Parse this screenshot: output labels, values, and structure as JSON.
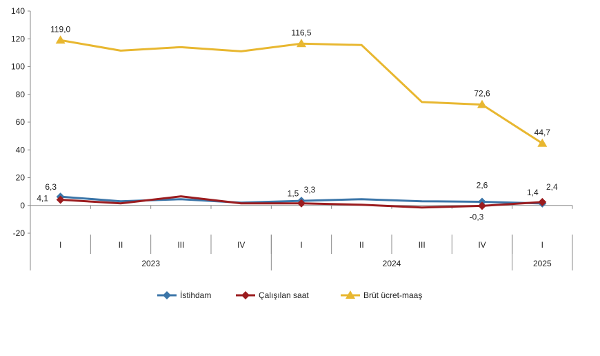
{
  "chart_data": {
    "type": "line",
    "ylim": [
      -20,
      140
    ],
    "yticks": [
      -20,
      0,
      20,
      40,
      60,
      80,
      100,
      120,
      140
    ],
    "categories": [
      "I",
      "II",
      "III",
      "IV",
      "I",
      "II",
      "III",
      "IV",
      "I"
    ],
    "years": [
      {
        "label": "2023",
        "span": 4
      },
      {
        "label": "2024",
        "span": 4
      },
      {
        "label": "2025",
        "span": 1
      }
    ],
    "grid": false,
    "legend": "bottom",
    "series": [
      {
        "name": "İstihdam",
        "color": "#3b75a8",
        "marker": "diamond",
        "values": [
          6.3,
          3.0,
          4.5,
          2.0,
          3.3,
          4.5,
          3.0,
          2.6,
          1.4
        ],
        "labels": {
          "0": "6,3",
          "4": "3,3",
          "7": "2,6",
          "8": "1,4"
        }
      },
      {
        "name": "Çalışılan saat",
        "color": "#9b1c1f",
        "marker": "diamond",
        "values": [
          4.1,
          1.5,
          6.5,
          1.5,
          1.5,
          0.5,
          -1.5,
          -0.3,
          2.4
        ],
        "labels": {
          "0": "4,1",
          "4": "1,5",
          "7": "-0,3",
          "8": "2,4"
        }
      },
      {
        "name": "Brüt ücret-maaş",
        "color": "#e8b730",
        "marker": "triangle",
        "values": [
          119.0,
          111.5,
          114.0,
          111.0,
          116.5,
          115.5,
          74.5,
          72.6,
          44.7
        ],
        "labels": {
          "0": "119,0",
          "4": "116,5",
          "7": "72,6",
          "8": "44,7"
        }
      }
    ]
  }
}
